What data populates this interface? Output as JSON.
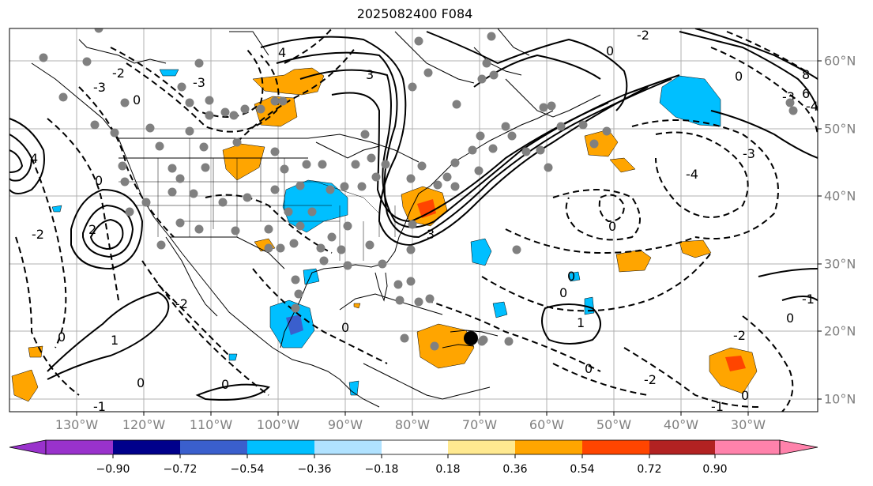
{
  "title": "2025082400 F084",
  "longitude_labels": [
    "130°W",
    "120°W",
    "110°W",
    "100°W",
    "90°W",
    "80°W",
    "70°W",
    "60°W",
    "50°W",
    "40°W",
    "30°W"
  ],
  "latitude_labels": [
    "60°N",
    "50°N",
    "40°N",
    "30°N",
    "20°N",
    "10°N"
  ],
  "colorbar": {
    "labels": [
      "−0.90",
      "−0.72",
      "−0.54",
      "−0.36",
      "−0.18",
      "0.18",
      "0.36",
      "0.54",
      "0.72",
      "0.90"
    ],
    "colors": [
      "#9932cc",
      "#00008b",
      "#3a5fcd",
      "#00bfff",
      "#b0e2ff",
      "#ffffff",
      "#ffe990",
      "#ffa500",
      "#ff4500",
      "#b22222",
      "#ff82ab"
    ]
  },
  "contour_labels": [
    "0",
    "1",
    "2",
    "3",
    "4",
    "-1",
    "-2",
    "-3",
    "-4",
    "6",
    "8"
  ],
  "colors": {
    "land_outline": "#000000",
    "grid": "#b0b0b0",
    "point_marker": "#808080",
    "center_marker": "#000000"
  }
}
